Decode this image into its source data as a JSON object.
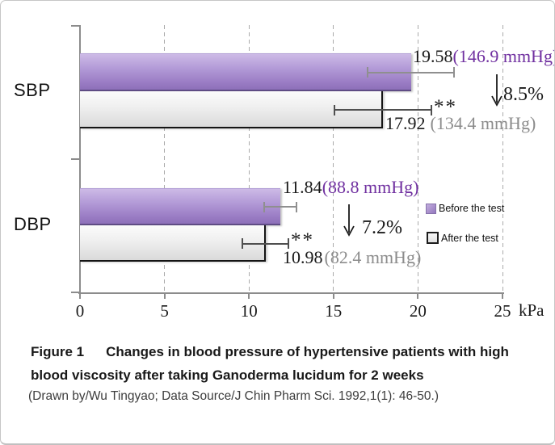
{
  "chart_data": {
    "type": "bar",
    "orientation": "horizontal",
    "categories": [
      "SBP",
      "DBP"
    ],
    "x_ticks": [
      0,
      5,
      10,
      15,
      20,
      25
    ],
    "xlim": [
      0,
      25
    ],
    "x_unit": "kPa",
    "grid": "vertical-dashed",
    "legend_position": "middle-right",
    "series": [
      {
        "name": "Before the test",
        "color": "#a78fcb",
        "values_kPa": [
          19.58,
          11.84
        ],
        "values_mmHg": [
          146.9,
          88.8
        ],
        "error_kPa": [
          2.6,
          1.0
        ]
      },
      {
        "name": "After the test",
        "color": "#ececec",
        "values_kPa": [
          17.92,
          10.98
        ],
        "values_mmHg": [
          134.4,
          82.4
        ],
        "error_kPa": [
          2.9,
          1.4
        ]
      }
    ],
    "decrease_percent": [
      8.5,
      7.2
    ],
    "significance_marker": "**"
  },
  "annotations": {
    "sbp": {
      "label": "SBP",
      "before_value": "19.58",
      "before_paren": "(146.9 mmHg)",
      "after_value": "17.92",
      "after_paren": "(134.4 mmHg)",
      "sig": "**",
      "percent": "8.5%"
    },
    "dbp": {
      "label": "DBP",
      "before_value": "11.84",
      "before_paren": "(88.8 mmHg)",
      "after_value": "10.98",
      "after_paren": "(82.4 mmHg)",
      "sig": "**",
      "percent": "7.2%"
    }
  },
  "legend": {
    "before": "Before the test",
    "after": "After the test"
  },
  "caption": {
    "figure_no": "Figure 1",
    "line1": "Changes in blood pressure of hypertensive patients with high",
    "line2": "blood viscosity after taking Ganoderma lucidum for 2 weeks",
    "source": "(Drawn by/Wu Tingyao; Data Source/J Chin Pharm Sci. 1992,1(1): 46-50.)"
  },
  "colors": {
    "before_bar": "#a78fcb",
    "after_bar": "#ececec",
    "purple_text": "#7030a0",
    "gray_text": "#8c8c8c",
    "axis": "#8c8c8c"
  }
}
